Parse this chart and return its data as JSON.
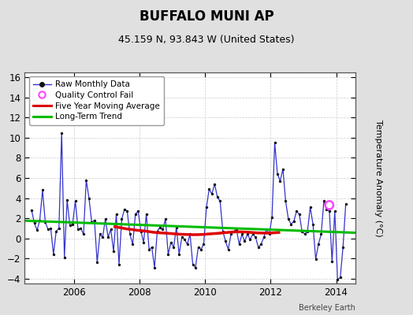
{
  "title": "BUFFALO MUNI AP",
  "subtitle": "45.159 N, 93.843 W (United States)",
  "ylabel": "Temperature Anomaly (°C)",
  "credit": "Berkeley Earth",
  "xlim": [
    2004.5,
    2014.58
  ],
  "ylim": [
    -4.5,
    16.5
  ],
  "yticks": [
    -4,
    -2,
    0,
    2,
    4,
    6,
    8,
    10,
    12,
    14,
    16
  ],
  "xticks": [
    2006,
    2008,
    2010,
    2012,
    2014
  ],
  "outer_bg": "#e0e0e0",
  "plot_bg_color": "#ffffff",
  "raw_color": "#3333cc",
  "dot_color": "#111111",
  "moving_avg_color": "#dd0000",
  "trend_color": "#00bb00",
  "qc_fail_color": "#ff44ff",
  "raw_data_x": [
    2004.708,
    2004.792,
    2004.875,
    2004.958,
    2005.042,
    2005.125,
    2005.208,
    2005.292,
    2005.375,
    2005.458,
    2005.542,
    2005.625,
    2005.708,
    2005.792,
    2005.875,
    2005.958,
    2006.042,
    2006.125,
    2006.208,
    2006.292,
    2006.375,
    2006.458,
    2006.542,
    2006.625,
    2006.708,
    2006.792,
    2006.875,
    2006.958,
    2007.042,
    2007.125,
    2007.208,
    2007.292,
    2007.375,
    2007.458,
    2007.542,
    2007.625,
    2007.708,
    2007.792,
    2007.875,
    2007.958,
    2008.042,
    2008.125,
    2008.208,
    2008.292,
    2008.375,
    2008.458,
    2008.542,
    2008.625,
    2008.708,
    2008.792,
    2008.875,
    2008.958,
    2009.042,
    2009.125,
    2009.208,
    2009.292,
    2009.375,
    2009.458,
    2009.542,
    2009.625,
    2009.708,
    2009.792,
    2009.875,
    2009.958,
    2010.042,
    2010.125,
    2010.208,
    2010.292,
    2010.375,
    2010.458,
    2010.542,
    2010.625,
    2010.708,
    2010.792,
    2010.875,
    2010.958,
    2011.042,
    2011.125,
    2011.208,
    2011.292,
    2011.375,
    2011.458,
    2011.542,
    2011.625,
    2011.708,
    2011.792,
    2011.875,
    2011.958,
    2012.042,
    2012.125,
    2012.208,
    2012.292,
    2012.375,
    2012.458,
    2012.542,
    2012.625,
    2012.708,
    2012.792,
    2012.875,
    2012.958,
    2013.042,
    2013.125,
    2013.208,
    2013.292,
    2013.375,
    2013.458,
    2013.542,
    2013.625,
    2013.708,
    2013.792,
    2013.875,
    2013.958,
    2014.042,
    2014.125,
    2014.208,
    2014.292
  ],
  "raw_data_y": [
    2.8,
    1.5,
    0.8,
    1.8,
    4.8,
    1.6,
    0.9,
    1.0,
    -1.6,
    0.7,
    1.0,
    10.5,
    -1.9,
    3.8,
    1.3,
    1.4,
    3.7,
    0.9,
    1.0,
    0.4,
    5.8,
    4.0,
    1.6,
    1.8,
    -2.4,
    0.4,
    0.1,
    1.9,
    0.1,
    0.9,
    -1.3,
    2.4,
    -2.6,
    1.9,
    2.9,
    2.7,
    0.4,
    -0.6,
    2.4,
    2.7,
    0.7,
    -0.4,
    2.4,
    -1.1,
    -0.9,
    -2.9,
    0.7,
    1.1,
    0.9,
    1.9,
    -1.6,
    -0.4,
    -0.9,
    1.1,
    -1.6,
    0.1,
    -0.1,
    -0.6,
    0.4,
    -2.6,
    -2.9,
    -0.9,
    -1.1,
    -0.6,
    3.1,
    4.9,
    4.4,
    5.4,
    4.1,
    3.7,
    0.7,
    -0.3,
    -1.1,
    0.4,
    0.7,
    0.9,
    -0.6,
    0.4,
    -0.3,
    0.4,
    -0.1,
    0.4,
    0.1,
    -0.9,
    -0.6,
    0.1,
    0.9,
    0.4,
    2.1,
    9.5,
    6.4,
    5.7,
    6.9,
    3.7,
    1.9,
    1.4,
    1.7,
    2.7,
    2.4,
    0.7,
    0.4,
    0.7,
    3.1,
    1.4,
    -2.1,
    -0.6,
    0.4,
    3.7,
    2.9,
    2.7,
    -2.3,
    2.7,
    -4.1,
    -3.9,
    -0.9,
    3.4
  ],
  "moving_avg_x": [
    2007.25,
    2007.42,
    2007.58,
    2007.75,
    2007.92,
    2008.08,
    2008.25,
    2008.42,
    2008.58,
    2008.75,
    2008.92,
    2009.08,
    2009.25,
    2009.42,
    2009.58,
    2009.75,
    2009.92,
    2010.08,
    2010.25,
    2010.42,
    2010.58,
    2010.75,
    2010.92,
    2011.08,
    2011.25,
    2011.42,
    2011.58,
    2011.75,
    2011.92,
    2012.08,
    2012.25
  ],
  "moving_avg_y": [
    1.15,
    1.05,
    0.95,
    0.88,
    0.8,
    0.75,
    0.68,
    0.6,
    0.55,
    0.52,
    0.48,
    0.44,
    0.4,
    0.38,
    0.36,
    0.36,
    0.38,
    0.42,
    0.46,
    0.5,
    0.55,
    0.6,
    0.64,
    0.64,
    0.62,
    0.58,
    0.54,
    0.52,
    0.52,
    0.54,
    0.58
  ],
  "trend_x": [
    2004.5,
    2014.58
  ],
  "trend_y": [
    1.75,
    0.55
  ],
  "qc_fail_x": [
    2013.79
  ],
  "qc_fail_y": [
    3.3
  ],
  "legend_loc": "upper left"
}
